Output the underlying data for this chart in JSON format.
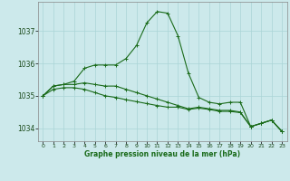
{
  "title": "Graphe pression niveau de la mer (hPa)",
  "bg_color": "#cce9eb",
  "grid_color": "#aad4d6",
  "line_color": "#1a6b1a",
  "marker_color": "#1a6b1a",
  "xlim": [
    -0.5,
    23.5
  ],
  "ylim": [
    1033.6,
    1037.9
  ],
  "yticks": [
    1034,
    1035,
    1036,
    1037
  ],
  "xticks": [
    0,
    1,
    2,
    3,
    4,
    5,
    6,
    7,
    8,
    9,
    10,
    11,
    12,
    13,
    14,
    15,
    16,
    17,
    18,
    19,
    20,
    21,
    22,
    23
  ],
  "series": [
    [
      1035.0,
      1035.3,
      1035.35,
      1035.45,
      1035.85,
      1035.95,
      1035.95,
      1035.95,
      1036.15,
      1036.55,
      1037.25,
      1037.6,
      1037.55,
      1036.85,
      1035.7,
      1034.95,
      1034.8,
      1034.75,
      1034.8,
      1034.8,
      1034.05,
      1034.15,
      1034.25,
      1033.9
    ],
    [
      1035.0,
      1035.3,
      1035.35,
      1035.35,
      1035.4,
      1035.35,
      1035.3,
      1035.3,
      1035.2,
      1035.1,
      1035.0,
      1034.9,
      1034.8,
      1034.7,
      1034.6,
      1034.65,
      1034.6,
      1034.55,
      1034.55,
      1034.5,
      1034.05,
      1034.15,
      1034.25,
      1033.9
    ],
    [
      1035.0,
      1035.2,
      1035.25,
      1035.25,
      1035.2,
      1035.1,
      1035.0,
      1034.95,
      1034.88,
      1034.82,
      1034.76,
      1034.7,
      1034.65,
      1034.65,
      1034.58,
      1034.62,
      1034.58,
      1034.52,
      1034.52,
      1034.48,
      1034.05,
      1034.15,
      1034.25,
      1033.9
    ]
  ]
}
